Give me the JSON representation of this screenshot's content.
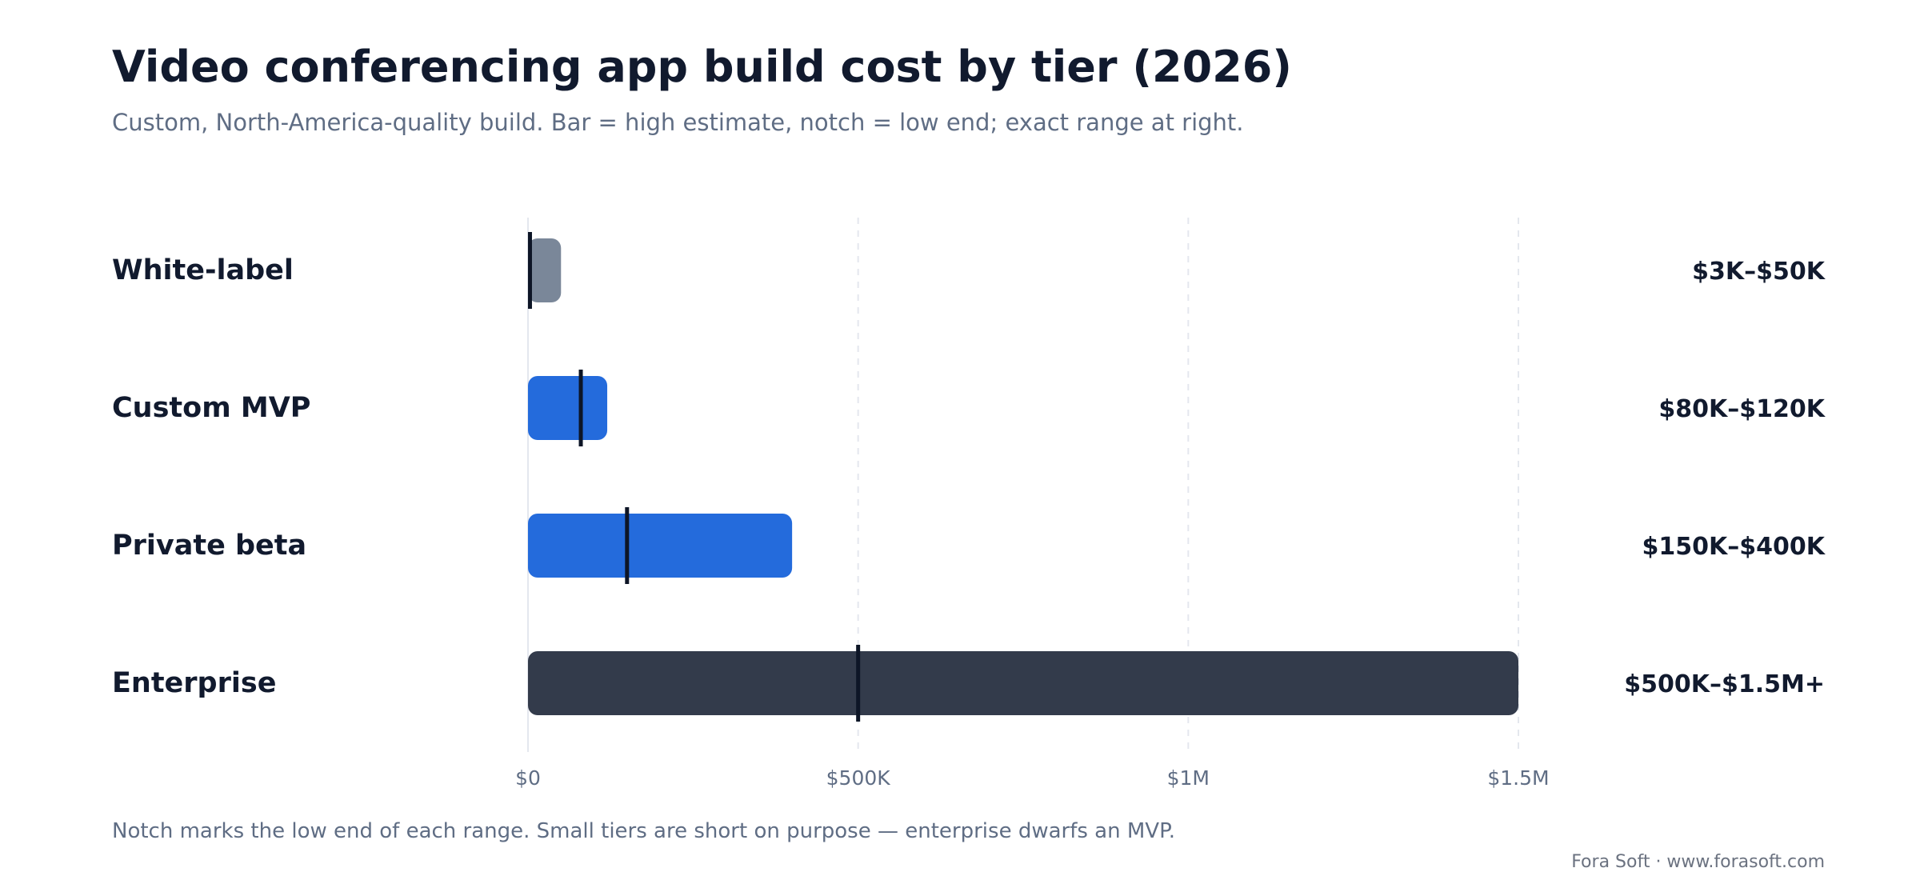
{
  "title": "Video conferencing app build cost by tier (2026)",
  "subtitle": "Custom, North-America-quality build. Bar = high estimate, notch = low end; exact range at right.",
  "footnote": "Notch marks the low end of each range. Small tiers are short on purpose — enterprise dwarfs an MVP.",
  "credit": "Fora Soft · www.forasoft.com",
  "chart_data": {
    "type": "bar",
    "orientation": "horizontal",
    "categories": [
      "White-label",
      "Custom MVP",
      "Private beta",
      "Enterprise"
    ],
    "low": [
      3000,
      80000,
      150000,
      500000
    ],
    "high": [
      50000,
      120000,
      400000,
      1500000
    ],
    "range_labels": [
      "$3K–$50K",
      "$80K–$120K",
      "$150K–$400K",
      "$500K–$1.5M+"
    ],
    "colors": [
      "#7a8799",
      "#246bdc",
      "#246bdc",
      "#333b4b"
    ],
    "notch_color": "#0d1526",
    "xlim": [
      0,
      1500000
    ],
    "ticks": [
      0,
      500000,
      1000000,
      1500000
    ],
    "tick_labels": [
      "$0",
      "$500K",
      "$1M",
      "$1.5M"
    ],
    "grid": true
  }
}
